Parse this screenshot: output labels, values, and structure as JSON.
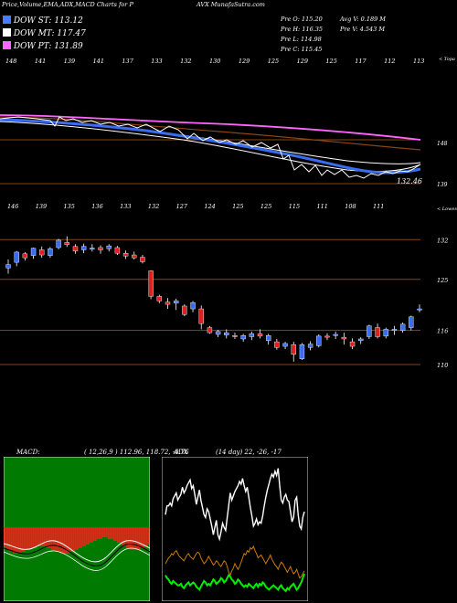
{
  "header": {
    "title_left": "Price,Volume,EMA,ADX,MACD Charts for P",
    "title_right": "AVX  MunafaSutra.com",
    "dow_st": "DOW ST: 113.12",
    "dow_mt": "DOW MT: 117.47",
    "dow_pt": "DOW PT: 131.89",
    "prev_o": "Pre   O: 115.20",
    "prev_h": "Pre   H: 116.35",
    "prev_l": "Pre   L: 114.98",
    "prev_c": "Pre   C: 115.45",
    "avg_v": "Avg V: 0.189 M",
    "prev_v": "Pre   V: 4.543 M"
  },
  "colors": {
    "dow_st": "#4a7bff",
    "dow_mt": "#ffffff",
    "dow_pt": "#ff66ff",
    "bull": "#3a6cf0",
    "bear": "#e02020",
    "guide": "#8b4513"
  },
  "ema_panel": {
    "top_labels": [
      "148",
      "141",
      "139",
      "141",
      "137",
      "133",
      "132",
      "130",
      "129",
      "125",
      "129",
      "125",
      "117",
      "112",
      "113"
    ],
    "bottom_labels": [
      "146",
      "139",
      "135",
      "136",
      "133",
      "132",
      "127",
      "124",
      "125",
      "125",
      "115",
      "111",
      "108",
      "111"
    ],
    "corner_label": "< Topa",
    "price_mark": "132.46",
    "axis_labels": [
      "148",
      "139"
    ]
  },
  "chart_data": [
    {
      "type": "candlestick",
      "corner_label": "< Lowes",
      "y_ticks": [
        "132",
        "125",
        "116",
        "110"
      ],
      "candles": [
        [
          127,
          128.5,
          126,
          127.6
        ],
        [
          128,
          130,
          127.3,
          129.8
        ],
        [
          129.5,
          129.8,
          128.3,
          128.8
        ],
        [
          129.2,
          130.6,
          128.6,
          130.5
        ],
        [
          130.2,
          130.8,
          128.8,
          129.3
        ],
        [
          129.2,
          130.7,
          128.8,
          130.4
        ],
        [
          130.6,
          132.1,
          130.3,
          131.9
        ],
        [
          131.5,
          132.6,
          130.7,
          131.1
        ],
        [
          130.8,
          131.2,
          129.5,
          130.0
        ],
        [
          130.2,
          131.3,
          129.6,
          130.8
        ],
        [
          130.5,
          131.2,
          129.9,
          130.5
        ],
        [
          130.6,
          131.0,
          129.5,
          130.2
        ],
        [
          130.4,
          131.2,
          129.9,
          130.9
        ],
        [
          130.6,
          130.9,
          129.3,
          129.6
        ],
        [
          129.6,
          130.1,
          128.6,
          129.1
        ],
        [
          129.3,
          129.9,
          128.5,
          128.8
        ],
        [
          128.9,
          129.3,
          127.8,
          128.1
        ],
        [
          126.5,
          126.6,
          121.5,
          122.0
        ],
        [
          122.0,
          122.3,
          120.8,
          121.2
        ],
        [
          121.0,
          121.7,
          119.8,
          120.6
        ],
        [
          120.8,
          121.6,
          119.6,
          121.2
        ],
        [
          120.3,
          120.6,
          118.5,
          118.8
        ],
        [
          119.8,
          121.2,
          119.2,
          120.9
        ],
        [
          119.8,
          120.4,
          116.2,
          117.2
        ],
        [
          116.5,
          116.8,
          115.4,
          115.6
        ],
        [
          115.3,
          116.1,
          114.8,
          115.8
        ],
        [
          115.2,
          116.2,
          114.6,
          115.6
        ],
        [
          115.1,
          115.6,
          114.5,
          114.9
        ],
        [
          114.5,
          115.4,
          114.0,
          115.1
        ],
        [
          114.9,
          115.8,
          114.3,
          115.4
        ],
        [
          115.4,
          116.2,
          114.6,
          115.0
        ],
        [
          114.2,
          115.4,
          113.5,
          115.1
        ],
        [
          114.0,
          114.5,
          112.6,
          113.0
        ],
        [
          113.2,
          114.0,
          112.7,
          113.7
        ],
        [
          113.5,
          114.0,
          110.5,
          111.8
        ],
        [
          111.0,
          113.8,
          110.8,
          113.5
        ],
        [
          113.0,
          114.1,
          112.5,
          113.6
        ],
        [
          113.3,
          115.3,
          113.0,
          115.0
        ],
        [
          115.0,
          115.5,
          114.3,
          114.9
        ],
        [
          115.1,
          115.8,
          114.5,
          115.3
        ],
        [
          114.8,
          115.6,
          113.5,
          114.5
        ],
        [
          114.0,
          114.6,
          112.7,
          113.2
        ],
        [
          114.2,
          114.8,
          113.6,
          114.5
        ],
        [
          114.9,
          117.0,
          114.5,
          116.8
        ],
        [
          116.5,
          117.2,
          114.6,
          114.9
        ],
        [
          115.0,
          116.5,
          114.6,
          116.2
        ],
        [
          116.0,
          116.8,
          115.2,
          116.2
        ],
        [
          116.0,
          117.4,
          115.6,
          117.1
        ],
        [
          116.5,
          118.6,
          116.0,
          118.4
        ],
        [
          119.7,
          120.6,
          119.2,
          119.8
        ]
      ],
      "ylim": [
        105,
        138
      ]
    },
    {
      "type": "bar",
      "title": "MACD:",
      "params": "( 12,26,9 ) 112.96, 118.72, -0.76",
      "hist": [
        -10,
        -11,
        -12,
        -13,
        -13,
        -14,
        -14,
        -14,
        -14,
        -14,
        -13,
        -13,
        -12,
        -12,
        -12,
        -11,
        -11,
        -11,
        -10,
        -10,
        -10,
        -10,
        -10,
        -11,
        -11,
        -11,
        -12,
        -12,
        -13,
        -13,
        -13,
        -14,
        -14,
        -14,
        -14,
        -14,
        -14,
        -13,
        -13,
        -12,
        -12,
        -11,
        -11,
        -10,
        -10,
        -9,
        -9,
        -8,
        -8,
        -7,
        -7,
        -6,
        -6,
        -6,
        -5,
        -5,
        -5,
        -6,
        -6,
        -6,
        -7,
        -7,
        -8,
        -8,
        -9,
        -10,
        -10,
        -11,
        -11,
        -12,
        -12,
        -12,
        -12,
        -12,
        -12,
        -11,
        -11,
        -10,
        -10,
        -9
      ]
    },
    {
      "type": "line",
      "title": "ADX",
      "params": "(14 day) 22,  -26,  -17",
      "series": [
        {
          "values": [
            60,
            66,
            66,
            68,
            66,
            71,
            73,
            75,
            70,
            72,
            74,
            79,
            75,
            77,
            80,
            82,
            84,
            78,
            80,
            74,
            67,
            72,
            77,
            70,
            65,
            60,
            58,
            64,
            62,
            57,
            52,
            46,
            51,
            56,
            46,
            43,
            48,
            54,
            51,
            49,
            58,
            66,
            75,
            70,
            73,
            76,
            78,
            80,
            83,
            81,
            85,
            80,
            76,
            79,
            72,
            65,
            59,
            52,
            54,
            57,
            53,
            55,
            54,
            59,
            66,
            72,
            77,
            81,
            85,
            88,
            86,
            90,
            87,
            92,
            80,
            70,
            68,
            72,
            74,
            70,
            69,
            62,
            55,
            58,
            70,
            72,
            60,
            52,
            50,
            58,
            62
          ]
        },
        {
          "values": [
            26,
            28,
            30,
            31,
            33,
            32,
            34,
            35,
            33,
            31,
            30,
            29,
            28,
            30,
            32,
            33,
            31,
            30,
            29,
            31,
            33,
            34,
            33,
            30,
            28,
            26,
            27,
            29,
            31,
            29,
            27,
            25,
            26,
            28,
            27,
            25,
            24,
            26,
            28,
            27,
            24,
            20,
            18,
            21,
            23,
            26,
            24,
            22,
            24,
            27,
            30,
            33,
            32,
            35,
            34,
            37,
            36,
            38,
            35,
            33,
            30,
            31,
            32,
            30,
            28,
            26,
            28,
            30,
            32,
            29,
            27,
            25,
            24,
            22,
            25,
            27,
            26,
            24,
            22,
            20,
            22,
            24,
            21,
            19,
            20,
            22,
            19,
            16,
            17,
            19,
            21
          ]
        },
        {
          "values": [
            18,
            16,
            15,
            13,
            12,
            14,
            13,
            12,
            11,
            11,
            12,
            10,
            9,
            11,
            12,
            13,
            11,
            12,
            13,
            12,
            10,
            9,
            8,
            10,
            12,
            14,
            13,
            11,
            12,
            11,
            13,
            15,
            14,
            12,
            13,
            14,
            16,
            15,
            13,
            14,
            16,
            18,
            17,
            15,
            14,
            12,
            13,
            15,
            14,
            12,
            11,
            10,
            11,
            10,
            12,
            11,
            10,
            9,
            11,
            12,
            10,
            12,
            11,
            13,
            12,
            10,
            9,
            8,
            9,
            10,
            11,
            10,
            9,
            8,
            10,
            11,
            9,
            8,
            7,
            9,
            8,
            10,
            11,
            12,
            10,
            8,
            9,
            11,
            13,
            16,
            19
          ]
        }
      ]
    }
  ]
}
